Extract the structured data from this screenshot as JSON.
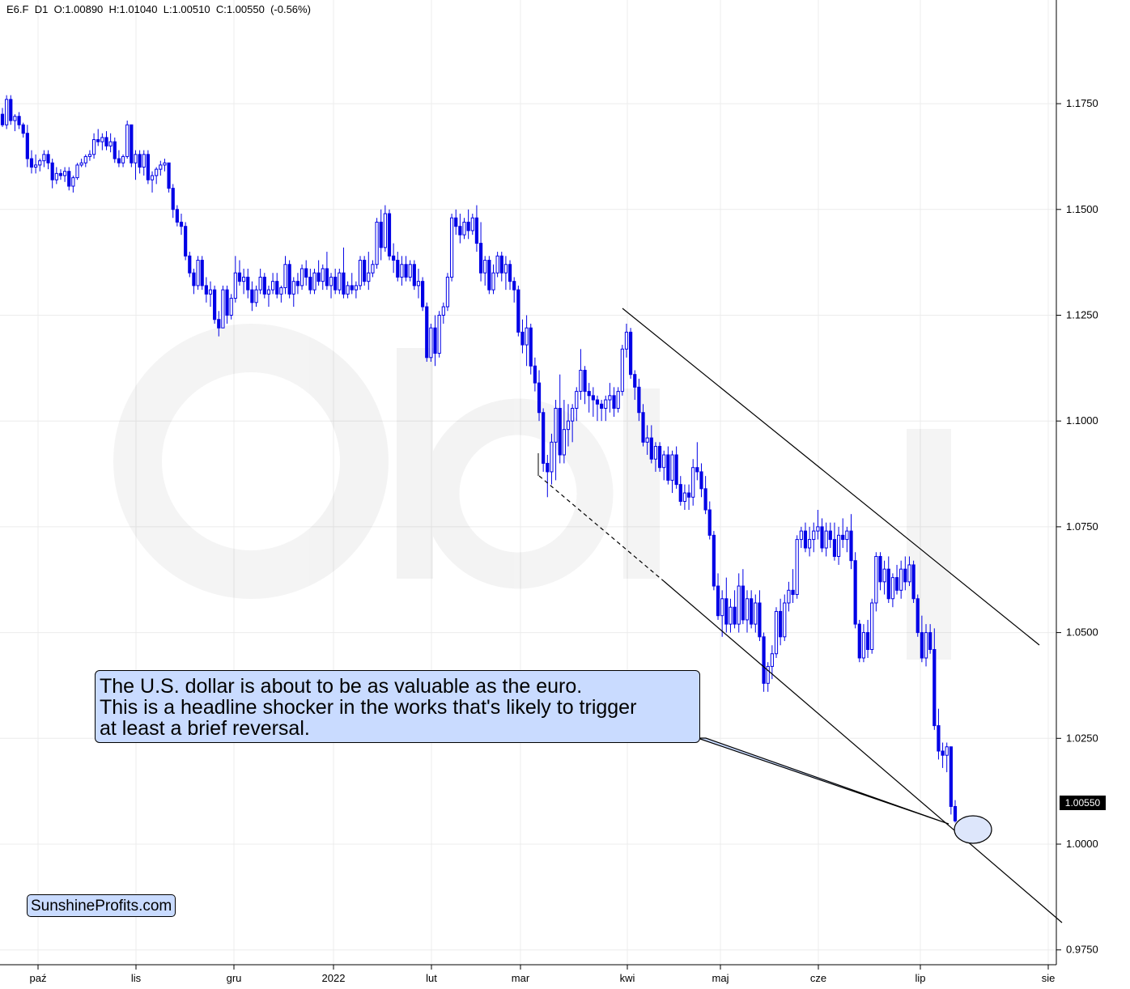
{
  "header": {
    "symbol": "E6.F",
    "timeframe": "D1",
    "open": "O:1.00890",
    "high": "H:1.01040",
    "low": "L:1.00510",
    "close": "C:1.00550",
    "change": "(-0.56%)"
  },
  "callout": {
    "lines": [
      "The U.S. dollar is about to be as valuable as the euro.",
      "This is a headline shocker in the works that's likely to trigger",
      "at least a brief reversal."
    ]
  },
  "brand": "SunshineProfits.com",
  "last_price_label": "1.00550",
  "colors": {
    "candle": "#0000e6",
    "trendline": "#000000",
    "callout_fill": "#c9dbff",
    "grid": "#ececec"
  },
  "chart_data": {
    "type": "candlestick",
    "symbol": "E6.F",
    "x_tick_labels": [
      "paź",
      "lis",
      "gru",
      "2022",
      "lut",
      "mar",
      "kwi",
      "maj",
      "cze",
      "lip",
      "sie"
    ],
    "y_tick_labels": [
      "1.1750",
      "1.1500",
      "1.1250",
      "1.1000",
      "1.0750",
      "1.0500",
      "1.0250",
      "1.0000",
      "0.9750"
    ],
    "y_ticks": [
      1.175,
      1.15,
      1.125,
      1.1,
      1.075,
      1.05,
      1.025,
      1.0,
      0.975
    ],
    "ylim": [
      0.9715,
      1.1995
    ],
    "grid": true,
    "candles_ohlc": [
      [
        1.1725,
        1.174,
        1.1695,
        1.17
      ],
      [
        1.17,
        1.177,
        1.169,
        1.176
      ],
      [
        1.176,
        1.177,
        1.17,
        1.171
      ],
      [
        1.171,
        1.1725,
        1.1685,
        1.172
      ],
      [
        1.172,
        1.173,
        1.169,
        1.17
      ],
      [
        1.17,
        1.1705,
        1.167,
        1.168
      ],
      [
        1.168,
        1.17,
        1.16,
        1.162
      ],
      [
        1.162,
        1.164,
        1.1585,
        1.16
      ],
      [
        1.16,
        1.163,
        1.1585,
        1.1605
      ],
      [
        1.1605,
        1.162,
        1.159,
        1.1615
      ],
      [
        1.1615,
        1.164,
        1.16,
        1.163
      ],
      [
        1.163,
        1.164,
        1.1595,
        1.161
      ],
      [
        1.161,
        1.162,
        1.155,
        1.157
      ],
      [
        1.157,
        1.16,
        1.156,
        1.1585
      ],
      [
        1.1585,
        1.1595,
        1.157,
        1.158
      ],
      [
        1.158,
        1.16,
        1.1565,
        1.159
      ],
      [
        1.159,
        1.16,
        1.1545,
        1.1555
      ],
      [
        1.1555,
        1.158,
        1.154,
        1.1575
      ],
      [
        1.1575,
        1.161,
        1.157,
        1.1605
      ],
      [
        1.1605,
        1.162,
        1.16,
        1.161
      ],
      [
        1.161,
        1.163,
        1.16,
        1.1625
      ],
      [
        1.1625,
        1.164,
        1.1615,
        1.163
      ],
      [
        1.163,
        1.168,
        1.162,
        1.1665
      ],
      [
        1.1665,
        1.169,
        1.165,
        1.166
      ],
      [
        1.166,
        1.168,
        1.164,
        1.167
      ],
      [
        1.167,
        1.1685,
        1.164,
        1.165
      ],
      [
        1.165,
        1.168,
        1.1635,
        1.166
      ],
      [
        1.166,
        1.167,
        1.161,
        1.162
      ],
      [
        1.162,
        1.164,
        1.16,
        1.161
      ],
      [
        1.161,
        1.163,
        1.16,
        1.1625
      ],
      [
        1.1625,
        1.171,
        1.162,
        1.17
      ],
      [
        1.17,
        1.17,
        1.16,
        1.161
      ],
      [
        1.161,
        1.164,
        1.157,
        1.163
      ],
      [
        1.163,
        1.164,
        1.1585,
        1.16
      ],
      [
        1.16,
        1.164,
        1.158,
        1.163
      ],
      [
        1.163,
        1.164,
        1.156,
        1.157
      ],
      [
        1.157,
        1.159,
        1.154,
        1.158
      ],
      [
        1.158,
        1.16,
        1.156,
        1.1595
      ],
      [
        1.1595,
        1.1615,
        1.158,
        1.1605
      ],
      [
        1.1605,
        1.162,
        1.159,
        1.161
      ],
      [
        1.161,
        1.161,
        1.154,
        1.155
      ],
      [
        1.155,
        1.156,
        1.148,
        1.15
      ],
      [
        1.15,
        1.151,
        1.146,
        1.147
      ],
      [
        1.147,
        1.149,
        1.144,
        1.146
      ],
      [
        1.146,
        1.147,
        1.138,
        1.139
      ],
      [
        1.139,
        1.14,
        1.134,
        1.135
      ],
      [
        1.135,
        1.136,
        1.13,
        1.132
      ],
      [
        1.132,
        1.139,
        1.131,
        1.138
      ],
      [
        1.138,
        1.139,
        1.131,
        1.132
      ],
      [
        1.132,
        1.134,
        1.128,
        1.13
      ],
      [
        1.13,
        1.133,
        1.127,
        1.131
      ],
      [
        1.131,
        1.132,
        1.123,
        1.124
      ],
      [
        1.124,
        1.126,
        1.12,
        1.122
      ],
      [
        1.122,
        1.132,
        1.122,
        1.131
      ],
      [
        1.131,
        1.132,
        1.123,
        1.125
      ],
      [
        1.125,
        1.13,
        1.124,
        1.129
      ],
      [
        1.129,
        1.139,
        1.128,
        1.135
      ],
      [
        1.135,
        1.138,
        1.132,
        1.133
      ],
      [
        1.133,
        1.136,
        1.13,
        1.134
      ],
      [
        1.134,
        1.136,
        1.129,
        1.131
      ],
      [
        1.131,
        1.133,
        1.126,
        1.128
      ],
      [
        1.128,
        1.132,
        1.127,
        1.131
      ],
      [
        1.131,
        1.136,
        1.13,
        1.134
      ],
      [
        1.134,
        1.135,
        1.129,
        1.13
      ],
      [
        1.13,
        1.132,
        1.127,
        1.131
      ],
      [
        1.131,
        1.135,
        1.13,
        1.133
      ],
      [
        1.133,
        1.135,
        1.129,
        1.13
      ],
      [
        1.13,
        1.132,
        1.128,
        1.1315
      ],
      [
        1.1315,
        1.139,
        1.13,
        1.137
      ],
      [
        1.137,
        1.138,
        1.129,
        1.13
      ],
      [
        1.13,
        1.134,
        1.127,
        1.133
      ],
      [
        1.133,
        1.135,
        1.13,
        1.132
      ],
      [
        1.132,
        1.137,
        1.131,
        1.136
      ],
      [
        1.136,
        1.138,
        1.132,
        1.134
      ],
      [
        1.134,
        1.136,
        1.13,
        1.131
      ],
      [
        1.131,
        1.136,
        1.13,
        1.135
      ],
      [
        1.135,
        1.138,
        1.132,
        1.133
      ],
      [
        1.133,
        1.137,
        1.131,
        1.136
      ],
      [
        1.136,
        1.14,
        1.131,
        1.132
      ],
      [
        1.132,
        1.135,
        1.129,
        1.134
      ],
      [
        1.134,
        1.136,
        1.13,
        1.131
      ],
      [
        1.131,
        1.136,
        1.13,
        1.135
      ],
      [
        1.135,
        1.141,
        1.129,
        1.13
      ],
      [
        1.13,
        1.133,
        1.129,
        1.132
      ],
      [
        1.132,
        1.135,
        1.13,
        1.131
      ],
      [
        1.131,
        1.133,
        1.129,
        1.132
      ],
      [
        1.132,
        1.139,
        1.131,
        1.138
      ],
      [
        1.138,
        1.139,
        1.132,
        1.133
      ],
      [
        1.133,
        1.14,
        1.131,
        1.135
      ],
      [
        1.135,
        1.138,
        1.134,
        1.137
      ],
      [
        1.137,
        1.148,
        1.136,
        1.147
      ],
      [
        1.147,
        1.15,
        1.138,
        1.141
      ],
      [
        1.141,
        1.151,
        1.14,
        1.149
      ],
      [
        1.149,
        1.15,
        1.138,
        1.139
      ],
      [
        1.139,
        1.142,
        1.135,
        1.138
      ],
      [
        1.138,
        1.14,
        1.133,
        1.134
      ],
      [
        1.134,
        1.139,
        1.132,
        1.137
      ],
      [
        1.137,
        1.139,
        1.133,
        1.134
      ],
      [
        1.134,
        1.138,
        1.133,
        1.137
      ],
      [
        1.137,
        1.138,
        1.131,
        1.132
      ],
      [
        1.132,
        1.136,
        1.129,
        1.133
      ],
      [
        1.133,
        1.134,
        1.126,
        1.127
      ],
      [
        1.127,
        1.128,
        1.114,
        1.115
      ],
      [
        1.115,
        1.123,
        1.114,
        1.122
      ],
      [
        1.122,
        1.125,
        1.113,
        1.116
      ],
      [
        1.116,
        1.126,
        1.115,
        1.125
      ],
      [
        1.125,
        1.128,
        1.123,
        1.127
      ],
      [
        1.127,
        1.135,
        1.126,
        1.134
      ],
      [
        1.134,
        1.149,
        1.133,
        1.148
      ],
      [
        1.148,
        1.15,
        1.144,
        1.146
      ],
      [
        1.146,
        1.149,
        1.142,
        1.144
      ],
      [
        1.144,
        1.148,
        1.143,
        1.147
      ],
      [
        1.147,
        1.15,
        1.143,
        1.145
      ],
      [
        1.145,
        1.149,
        1.144,
        1.148
      ],
      [
        1.148,
        1.151,
        1.14,
        1.142
      ],
      [
        1.142,
        1.147,
        1.133,
        1.135
      ],
      [
        1.135,
        1.139,
        1.132,
        1.138
      ],
      [
        1.138,
        1.139,
        1.13,
        1.131
      ],
      [
        1.131,
        1.137,
        1.13,
        1.135
      ],
      [
        1.135,
        1.14,
        1.134,
        1.139
      ],
      [
        1.139,
        1.14,
        1.133,
        1.135
      ],
      [
        1.135,
        1.139,
        1.131,
        1.137
      ],
      [
        1.137,
        1.138,
        1.131,
        1.133
      ],
      [
        1.133,
        1.134,
        1.128,
        1.131
      ],
      [
        1.131,
        1.132,
        1.12,
        1.121
      ],
      [
        1.121,
        1.124,
        1.116,
        1.118
      ],
      [
        1.118,
        1.125,
        1.113,
        1.122
      ],
      [
        1.122,
        1.123,
        1.111,
        1.113
      ],
      [
        1.113,
        1.115,
        1.107,
        1.109
      ],
      [
        1.109,
        1.112,
        1.1,
        1.102
      ],
      [
        1.102,
        1.103,
        1.088,
        1.09
      ],
      [
        1.09,
        1.092,
        1.082,
        1.088
      ],
      [
        1.088,
        1.097,
        1.085,
        1.095
      ],
      [
        1.095,
        1.105,
        1.086,
        1.103
      ],
      [
        1.103,
        1.111,
        1.09,
        1.092
      ],
      [
        1.092,
        1.105,
        1.09,
        1.098
      ],
      [
        1.098,
        1.104,
        1.094,
        1.1
      ],
      [
        1.1,
        1.104,
        1.095,
        1.103
      ],
      [
        1.103,
        1.108,
        1.1,
        1.107
      ],
      [
        1.107,
        1.117,
        1.105,
        1.112
      ],
      [
        1.112,
        1.113,
        1.104,
        1.107
      ],
      [
        1.107,
        1.109,
        1.102,
        1.106
      ],
      [
        1.106,
        1.108,
        1.101,
        1.105
      ],
      [
        1.105,
        1.106,
        1.1,
        1.104
      ],
      [
        1.104,
        1.105,
        1.1,
        1.103
      ],
      [
        1.103,
        1.106,
        1.1,
        1.105
      ],
      [
        1.105,
        1.109,
        1.102,
        1.106
      ],
      [
        1.106,
        1.108,
        1.101,
        1.103
      ],
      [
        1.103,
        1.108,
        1.102,
        1.107
      ],
      [
        1.107,
        1.118,
        1.106,
        1.117
      ],
      [
        1.117,
        1.123,
        1.115,
        1.121
      ],
      [
        1.121,
        1.122,
        1.11,
        1.111
      ],
      [
        1.111,
        1.112,
        1.105,
        1.108
      ],
      [
        1.108,
        1.11,
        1.1,
        1.102
      ],
      [
        1.102,
        1.104,
        1.094,
        1.095
      ],
      [
        1.095,
        1.099,
        1.092,
        1.096
      ],
      [
        1.096,
        1.099,
        1.09,
        1.091
      ],
      [
        1.091,
        1.095,
        1.088,
        1.094
      ],
      [
        1.094,
        1.095,
        1.088,
        1.089
      ],
      [
        1.089,
        1.093,
        1.086,
        1.092
      ],
      [
        1.092,
        1.094,
        1.085,
        1.086
      ],
      [
        1.086,
        1.093,
        1.083,
        1.092
      ],
      [
        1.092,
        1.094,
        1.084,
        1.085
      ],
      [
        1.085,
        1.087,
        1.08,
        1.081
      ],
      [
        1.081,
        1.085,
        1.079,
        1.083
      ],
      [
        1.083,
        1.085,
        1.079,
        1.082
      ],
      [
        1.082,
        1.091,
        1.08,
        1.089
      ],
      [
        1.089,
        1.095,
        1.086,
        1.088
      ],
      [
        1.088,
        1.09,
        1.082,
        1.084
      ],
      [
        1.084,
        1.087,
        1.078,
        1.079
      ],
      [
        1.079,
        1.081,
        1.072,
        1.073
      ],
      [
        1.073,
        1.074,
        1.06,
        1.061
      ],
      [
        1.061,
        1.064,
        1.053,
        1.054
      ],
      [
        1.054,
        1.06,
        1.049,
        1.058
      ],
      [
        1.058,
        1.063,
        1.05,
        1.052
      ],
      [
        1.052,
        1.058,
        1.05,
        1.056
      ],
      [
        1.056,
        1.06,
        1.051,
        1.052
      ],
      [
        1.052,
        1.064,
        1.05,
        1.061
      ],
      [
        1.061,
        1.065,
        1.052,
        1.053
      ],
      [
        1.053,
        1.06,
        1.05,
        1.058
      ],
      [
        1.058,
        1.06,
        1.051,
        1.052
      ],
      [
        1.052,
        1.059,
        1.05,
        1.057
      ],
      [
        1.057,
        1.06,
        1.048,
        1.049
      ],
      [
        1.049,
        1.05,
        1.036,
        1.038
      ],
      [
        1.038,
        1.043,
        1.036,
        1.042
      ],
      [
        1.042,
        1.047,
        1.039,
        1.045
      ],
      [
        1.045,
        1.056,
        1.044,
        1.055
      ],
      [
        1.055,
        1.058,
        1.047,
        1.049
      ],
      [
        1.049,
        1.059,
        1.048,
        1.057
      ],
      [
        1.057,
        1.062,
        1.055,
        1.06
      ],
      [
        1.06,
        1.065,
        1.057,
        1.059
      ],
      [
        1.059,
        1.073,
        1.058,
        1.072
      ],
      [
        1.072,
        1.075,
        1.07,
        1.074
      ],
      [
        1.074,
        1.076,
        1.069,
        1.07
      ],
      [
        1.07,
        1.075,
        1.068,
        1.072
      ],
      [
        1.072,
        1.076,
        1.069,
        1.074
      ],
      [
        1.074,
        1.079,
        1.072,
        1.075
      ],
      [
        1.075,
        1.077,
        1.069,
        1.07
      ],
      [
        1.07,
        1.076,
        1.068,
        1.074
      ],
      [
        1.074,
        1.076,
        1.07,
        1.072
      ],
      [
        1.072,
        1.076,
        1.067,
        1.068
      ],
      [
        1.068,
        1.075,
        1.066,
        1.073
      ],
      [
        1.073,
        1.077,
        1.07,
        1.072
      ],
      [
        1.072,
        1.075,
        1.069,
        1.074
      ],
      [
        1.074,
        1.078,
        1.065,
        1.067
      ],
      [
        1.067,
        1.069,
        1.051,
        1.052
      ],
      [
        1.052,
        1.053,
        1.043,
        1.044
      ],
      [
        1.044,
        1.052,
        1.043,
        1.05
      ],
      [
        1.05,
        1.053,
        1.044,
        1.046
      ],
      [
        1.046,
        1.058,
        1.045,
        1.057
      ],
      [
        1.057,
        1.069,
        1.055,
        1.068
      ],
      [
        1.068,
        1.069,
        1.06,
        1.062
      ],
      [
        1.062,
        1.067,
        1.059,
        1.065
      ],
      [
        1.065,
        1.068,
        1.057,
        1.058
      ],
      [
        1.058,
        1.064,
        1.056,
        1.063
      ],
      [
        1.063,
        1.066,
        1.059,
        1.06
      ],
      [
        1.06,
        1.067,
        1.058,
        1.065
      ],
      [
        1.065,
        1.068,
        1.06,
        1.062
      ],
      [
        1.062,
        1.068,
        1.061,
        1.066
      ],
      [
        1.066,
        1.067,
        1.057,
        1.058
      ],
      [
        1.058,
        1.059,
        1.049,
        1.05
      ],
      [
        1.05,
        1.054,
        1.043,
        1.044
      ],
      [
        1.044,
        1.052,
        1.042,
        1.05
      ],
      [
        1.05,
        1.052,
        1.045,
        1.046
      ],
      [
        1.046,
        1.051,
        1.027,
        1.028
      ],
      [
        1.028,
        1.032,
        1.02,
        1.022
      ],
      [
        1.022,
        1.024,
        1.018,
        1.021
      ],
      [
        1.021,
        1.024,
        1.017,
        1.023
      ],
      [
        1.023,
        1.023,
        1.007,
        1.0089
      ],
      [
        1.0089,
        1.0104,
        1.0051,
        1.0055
      ]
    ],
    "trendlines": [
      {
        "style": "solid",
        "from": [
          1.1215,
          "kwi"
        ],
        "to": [
          1.041,
          "sie"
        ]
      },
      {
        "style": "dashed",
        "from": [
          1.081,
          "mar"
        ],
        "to": [
          0.979,
          "sie"
        ]
      }
    ]
  }
}
